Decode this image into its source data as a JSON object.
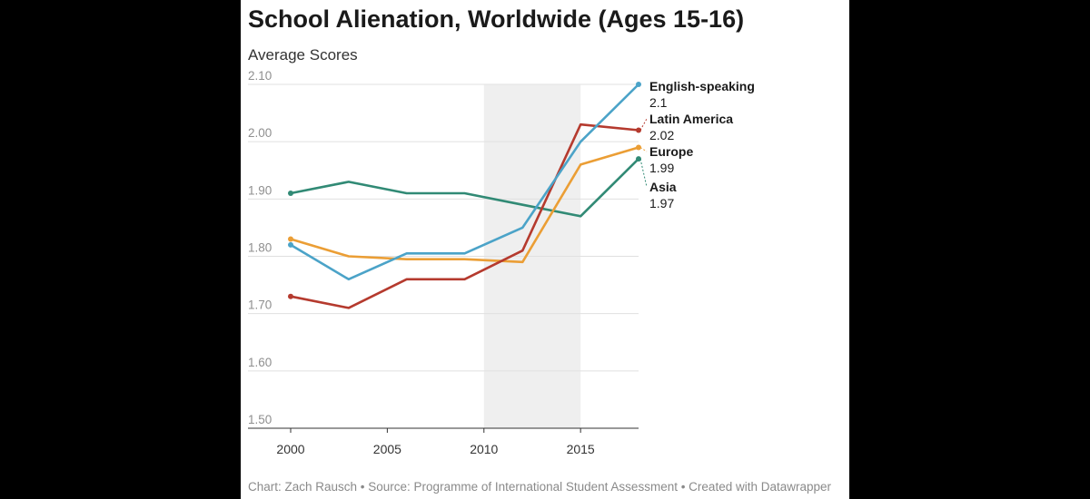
{
  "chart_data": {
    "type": "line",
    "title": "School Alienation, Worldwide (Ages 15-16)",
    "subtitle": "Average Scores",
    "xlabel": "",
    "ylabel": "",
    "xlim": [
      2000,
      2018
    ],
    "ylim": [
      1.5,
      2.1
    ],
    "grid": true,
    "y_ticks": [
      "2.10",
      "2.00",
      "1.90",
      "1.80",
      "1.70",
      "1.60",
      "1.50"
    ],
    "y_tick_values": [
      2.1,
      2.0,
      1.9,
      1.8,
      1.7,
      1.6,
      1.5
    ],
    "x_ticks": [
      "2000",
      "2005",
      "2010",
      "2015"
    ],
    "x_tick_values": [
      2000,
      2005,
      2010,
      2015
    ],
    "shaded_region": [
      2010,
      2015
    ],
    "series": [
      {
        "name": "English-speaking",
        "color": "#4ba3c8",
        "end_label": "2.1",
        "x": [
          2000,
          2003,
          2006,
          2009,
          2012,
          2015,
          2018
        ],
        "values": [
          1.82,
          1.76,
          1.805,
          1.805,
          1.85,
          2.0,
          2.1
        ]
      },
      {
        "name": "Latin America",
        "color": "#b53a2e",
        "end_label": "2.02",
        "x": [
          2000,
          2003,
          2006,
          2009,
          2012,
          2015,
          2018
        ],
        "values": [
          1.73,
          1.71,
          1.76,
          1.76,
          1.81,
          2.03,
          2.02
        ]
      },
      {
        "name": "Europe",
        "color": "#eb9e35",
        "end_label": "1.99",
        "x": [
          2000,
          2003,
          2006,
          2009,
          2012,
          2015,
          2018
        ],
        "values": [
          1.83,
          1.8,
          1.795,
          1.795,
          1.79,
          1.96,
          1.99
        ]
      },
      {
        "name": "Asia",
        "color": "#318a75",
        "end_label": "1.97",
        "x": [
          2000,
          2003,
          2006,
          2009,
          2012,
          2015,
          2018
        ],
        "values": [
          1.91,
          1.93,
          1.91,
          1.91,
          1.89,
          1.87,
          1.97
        ]
      }
    ],
    "source": "Chart: Zach Rausch • Source: Programme of International Student Assessment • Created with Datawrapper"
  }
}
